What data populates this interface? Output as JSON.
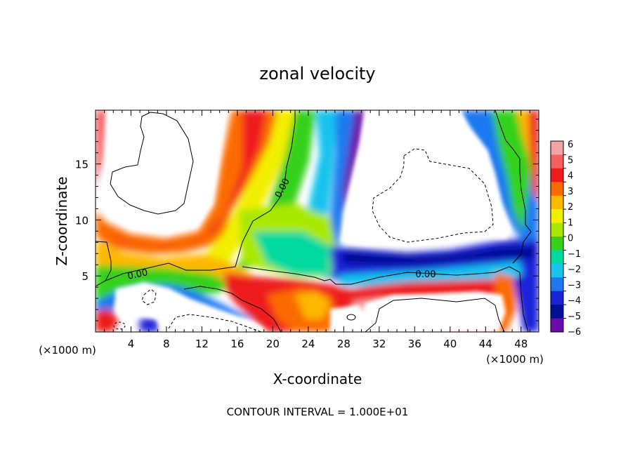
{
  "chart_data": {
    "type": "heatmap",
    "title": "zonal velocity",
    "xlabel": "X-coordinate",
    "ylabel": "Z-coordinate",
    "x_unit_label": "(×1000 m)",
    "x_unit_label_right": "(×1000 m)",
    "xlim": [
      0,
      50
    ],
    "ylim": [
      0,
      19.8
    ],
    "x_ticks": [
      4,
      8,
      12,
      16,
      20,
      24,
      28,
      32,
      36,
      40,
      44,
      48
    ],
    "y_ticks": [
      5,
      10,
      15
    ],
    "colorbar": {
      "levels": [
        6,
        5,
        4,
        3,
        2,
        1,
        0,
        -1,
        -2,
        -3,
        -4,
        -5,
        -6
      ],
      "labels": [
        "6",
        "5",
        "4",
        "3",
        "2",
        "1",
        "0",
        "−1",
        "−2",
        "−3",
        "−4",
        "−5",
        "−6"
      ],
      "colors": [
        "#f4a3a3",
        "#f46060",
        "#ee1a1a",
        "#fb6a00",
        "#fdb800",
        "#f2ee00",
        "#a8e800",
        "#36d11a",
        "#00d9a0",
        "#19c3ee",
        "#1f78f0",
        "#1a22d8",
        "#000f98",
        "#6b0aa8"
      ]
    },
    "contour_labels": [
      "0.00",
      "0.00",
      "0.00"
    ],
    "footnote": "CONTOUR INTERVAL = 1.000E+01"
  }
}
